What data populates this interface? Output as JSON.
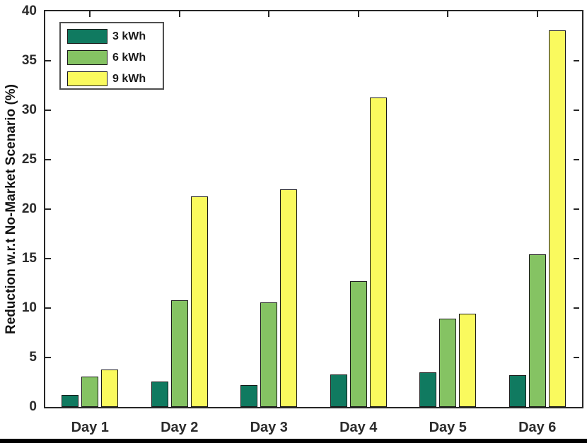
{
  "figure": {
    "ylabel": "Reduction w.r.t No-Market Scenario (%)",
    "background_color": "#ffffff",
    "axis_color": "#262626",
    "bottom_bar_color": "#000000"
  },
  "legend": {
    "position": "top-left",
    "items": [
      {
        "label": "3 kWh",
        "color": "#107a60"
      },
      {
        "label": "6 kWh",
        "color": "#85c363"
      },
      {
        "label": "9 kWh",
        "color": "#fafa5e"
      }
    ]
  },
  "chart_data": {
    "type": "bar",
    "categories": [
      "Day 1",
      "Day 2",
      "Day 3",
      "Day 4",
      "Day 5",
      "Day 6"
    ],
    "series": [
      {
        "name": "3 kWh",
        "color": "#107a60",
        "values": [
          1.2,
          2.6,
          2.2,
          3.3,
          3.5,
          3.2
        ]
      },
      {
        "name": "6 kWh",
        "color": "#85c363",
        "values": [
          3.1,
          10.8,
          10.6,
          12.7,
          8.9,
          15.4
        ]
      },
      {
        "name": "9 kWh",
        "color": "#fafa5e",
        "values": [
          3.8,
          21.3,
          22.0,
          31.3,
          9.4,
          38.1
        ]
      }
    ],
    "title": "",
    "xlabel": "",
    "ylabel": "Reduction w.r.t No-Market Scenario (%)",
    "ylim": [
      0,
      40
    ],
    "yticks": [
      0,
      5,
      10,
      15,
      20,
      25,
      30,
      35,
      40
    ],
    "grid": false,
    "legend_position": "top-left",
    "bar_edge_color": "#1a1a1a"
  }
}
